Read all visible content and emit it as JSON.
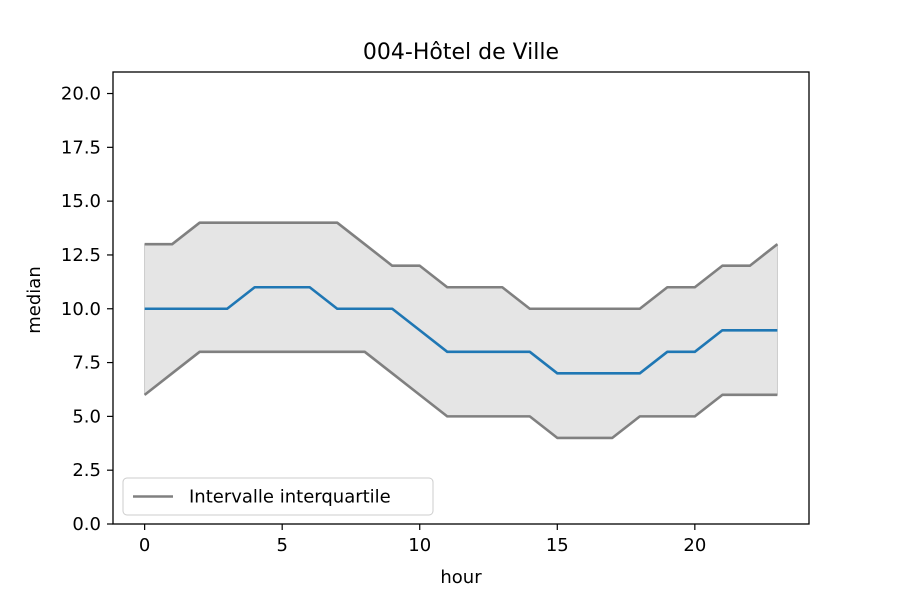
{
  "chart_data": {
    "type": "line",
    "title": "004-Hôtel de Ville",
    "xlabel": "hour",
    "ylabel": "median",
    "xlim": [
      -1.15,
      24.15
    ],
    "ylim": [
      0,
      21
    ],
    "xticks": [
      0,
      5,
      10,
      15,
      20
    ],
    "xtick_labels": [
      "0",
      "5",
      "10",
      "15",
      "20"
    ],
    "yticks": [
      0,
      2.5,
      5,
      7.5,
      10,
      12.5,
      15,
      17.5,
      20
    ],
    "ytick_labels": [
      "0.0",
      "2.5",
      "5.0",
      "7.5",
      "10.0",
      "12.5",
      "15.0",
      "17.5",
      "20.0"
    ],
    "grid": false,
    "legend_position": "lower-left",
    "legend": [
      {
        "label": "Intervalle interquartile",
        "color": "#808080"
      }
    ],
    "x": [
      0,
      1,
      2,
      3,
      4,
      5,
      6,
      7,
      8,
      9,
      10,
      11,
      12,
      13,
      14,
      15,
      16,
      17,
      18,
      19,
      20,
      21,
      22,
      23
    ],
    "series": [
      {
        "values": [
          10,
          10,
          10,
          10,
          11,
          11,
          11,
          10,
          10,
          10,
          9,
          8,
          8,
          8,
          8,
          7,
          7,
          7,
          7,
          8,
          8,
          9,
          9,
          9
        ],
        "color": "#1f77b4"
      },
      {
        "values": [
          13,
          13,
          14,
          14,
          14,
          14,
          14,
          14,
          13,
          12,
          12,
          11,
          11,
          11,
          10,
          10,
          10,
          10,
          10,
          11,
          11,
          12,
          12,
          13
        ],
        "color": "#808080"
      },
      {
        "values": [
          6,
          7,
          8,
          8,
          8,
          8,
          8,
          8,
          8,
          7,
          6,
          5,
          5,
          5,
          5,
          4,
          4,
          4,
          5,
          5,
          5,
          6,
          6,
          6
        ],
        "color": "#808080"
      }
    ],
    "band_fill_color": "#e5e5e5"
  }
}
